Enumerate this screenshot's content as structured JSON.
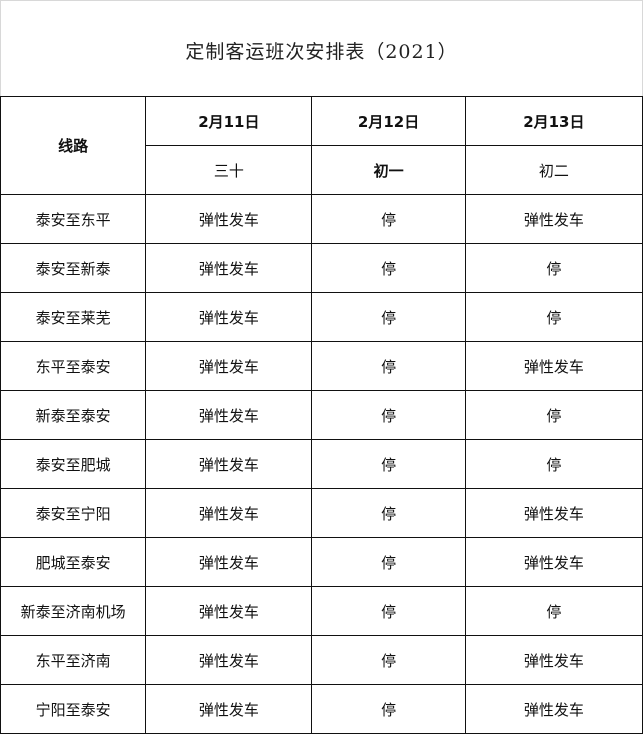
{
  "title": "定制客运班次安排表（2021）",
  "header": {
    "route_label": "线路",
    "dates": [
      "2月11日",
      "2月12日",
      "2月13日"
    ],
    "lunar": [
      "三十",
      "初一",
      "初二"
    ]
  },
  "rows": [
    {
      "route": "泰安至东平",
      "d1": "弹性发车",
      "d2": "停",
      "d3": "弹性发车"
    },
    {
      "route": "泰安至新泰",
      "d1": "弹性发车",
      "d2": "停",
      "d3": "停"
    },
    {
      "route": "泰安至莱芜",
      "d1": "弹性发车",
      "d2": "停",
      "d3": "停"
    },
    {
      "route": "东平至泰安",
      "d1": "弹性发车",
      "d2": "停",
      "d3": "弹性发车"
    },
    {
      "route": "新泰至泰安",
      "d1": "弹性发车",
      "d2": "停",
      "d3": "停"
    },
    {
      "route": "泰安至肥城",
      "d1": "弹性发车",
      "d2": "停",
      "d3": "停"
    },
    {
      "route": "泰安至宁阳",
      "d1": "弹性发车",
      "d2": "停",
      "d3": "弹性发车"
    },
    {
      "route": "肥城至泰安",
      "d1": "弹性发车",
      "d2": "停",
      "d3": "弹性发车"
    },
    {
      "route": "新泰至济南机场",
      "d1": "弹性发车",
      "d2": "停",
      "d3": "停"
    },
    {
      "route": "东平至济南",
      "d1": "弹性发车",
      "d2": "停",
      "d3": "弹性发车"
    },
    {
      "route": "宁阳至泰安",
      "d1": "弹性发车",
      "d2": "停",
      "d3": "弹性发车"
    }
  ]
}
